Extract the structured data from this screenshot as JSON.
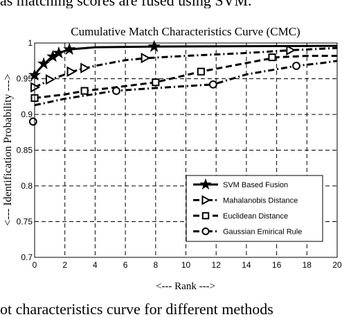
{
  "header_fragment": "as matching scores are fused using SVM.",
  "footer_fragment": "ot characteristics curve for different methods",
  "chart_data": {
    "type": "line",
    "title": "Cumulative Match Characteristics Curve (CMC)",
    "xlabel": "<--- Rank --->",
    "ylabel": "<--- Identification Probability --->",
    "xlim": [
      0,
      20
    ],
    "ylim": [
      0.7,
      1.0
    ],
    "xticks": [
      "0",
      "2",
      "4",
      "6",
      "8",
      "10",
      "12",
      "14",
      "16",
      "18",
      "20"
    ],
    "yticks": [
      "0.7",
      "0.75",
      "0.8",
      "0.85",
      "0.9",
      "0.95",
      "1"
    ],
    "grid": true,
    "legend_position": "lower-right",
    "series": [
      {
        "name": "SVM Based Fusion",
        "marker": "star",
        "dash": "solid",
        "x": [
          0,
          0.25,
          0.5,
          0.75,
          1,
          1.25,
          1.5,
          1.75,
          2,
          2.25,
          4,
          8,
          20
        ],
        "y": [
          0.955,
          0.962,
          0.968,
          0.973,
          0.978,
          0.982,
          0.985,
          0.987,
          0.989,
          0.991,
          0.994,
          0.995,
          0.996
        ],
        "marker_x": [
          0,
          0.6,
          1.2,
          1.6,
          2.3,
          7.9
        ],
        "marker_y": [
          0.955,
          0.971,
          0.981,
          0.986,
          0.991,
          0.995
        ]
      },
      {
        "name": "Mahalanobis Distance",
        "marker": "triangle-right",
        "dash": "dashdot",
        "x": [
          0,
          0.5,
          1,
          1.5,
          2,
          2.5,
          3,
          4,
          6,
          7.5,
          10,
          14,
          17,
          20
        ],
        "y": [
          0.938,
          0.943,
          0.948,
          0.952,
          0.956,
          0.96,
          0.963,
          0.968,
          0.976,
          0.979,
          0.982,
          0.986,
          0.99,
          0.993
        ],
        "marker_x": [
          0,
          1,
          2.4,
          3.3,
          7.3,
          16.9
        ],
        "marker_y": [
          0.938,
          0.949,
          0.96,
          0.965,
          0.979,
          0.99
        ]
      },
      {
        "name": "Euclidean Distance",
        "marker": "square",
        "dash": "dashed",
        "x": [
          0,
          2,
          3.3,
          5,
          8,
          11,
          13,
          15,
          16,
          18,
          20
        ],
        "y": [
          0.923,
          0.928,
          0.933,
          0.937,
          0.945,
          0.96,
          0.968,
          0.976,
          0.98,
          0.982,
          0.982
        ],
        "marker_x": [
          0,
          3.3,
          8,
          11,
          15.7
        ],
        "marker_y": [
          0.923,
          0.933,
          0.945,
          0.96,
          0.98
        ]
      },
      {
        "name": "Gaussian Emirical Rule",
        "marker": "circle",
        "dash": "dashdot",
        "x": [
          0,
          2,
          5.3,
          8,
          11.8,
          14,
          17.3,
          19,
          20
        ],
        "y": [
          0.913,
          0.922,
          0.933,
          0.937,
          0.942,
          0.956,
          0.968,
          0.972,
          0.975
        ],
        "marker_x": [
          -0.1,
          5.4,
          11.8,
          17.3
        ],
        "marker_y": [
          0.89,
          0.933,
          0.942,
          0.968
        ]
      }
    ]
  }
}
